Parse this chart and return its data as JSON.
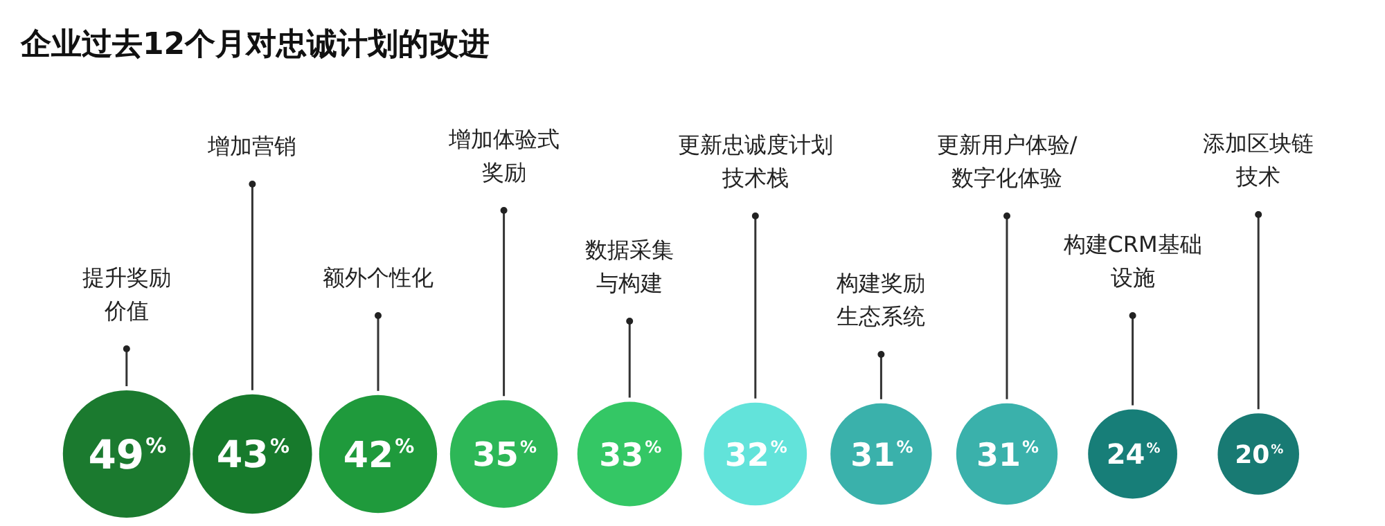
{
  "chart_data": {
    "type": "other",
    "title": "企业过去12个月对忠诚计划的改进",
    "categories": [
      "提升奖励价值",
      "增加营销",
      "额外个性化",
      "增加体验式奖励",
      "数据采集与构建",
      "更新忠诚度计划技术栈",
      "构建奖励生态系统",
      "更新用户体验/数字化体验",
      "构建CRM基础设施",
      "添加区块链技术"
    ],
    "values": [
      49,
      43,
      42,
      35,
      33,
      32,
      31,
      31,
      24,
      20
    ],
    "value_labels": [
      "49%",
      "43%",
      "42%",
      "35%",
      "33%",
      "32%",
      "31%",
      "31%",
      "24%",
      "20%"
    ],
    "colors": [
      "#1b7a2f",
      "#177a2c",
      "#1f9a3c",
      "#2db757",
      "#34c765",
      "#62e3da",
      "#3ab1ab",
      "#3ab1ab",
      "#177e78",
      "#187a73"
    ]
  }
}
